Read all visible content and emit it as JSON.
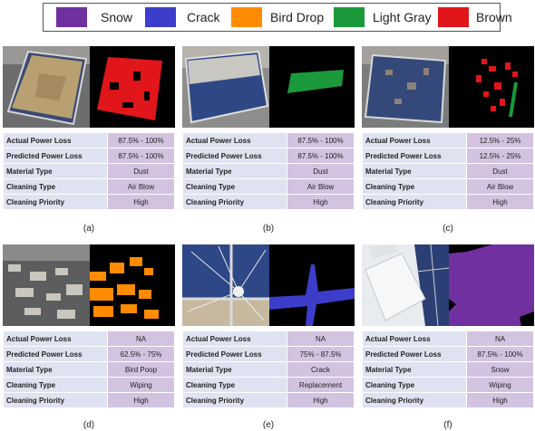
{
  "legend": [
    {
      "label": "Snow",
      "color": "#7030a0"
    },
    {
      "label": "Crack",
      "color": "#3d3dcc"
    },
    {
      "label": "Bird Drop",
      "color": "#ff8c00"
    },
    {
      "label": "Light Gray",
      "color": "#1a9a3a"
    },
    {
      "label": "Brown",
      "color": "#e0161b"
    }
  ],
  "row_labels": {
    "actual": "Actual Power Loss",
    "predicted": "Predicted Power Loss",
    "material": "Material Type",
    "cleaning": "Cleaning Type",
    "priority": "Cleaning Priority"
  },
  "panels": [
    {
      "caption": "(a)",
      "actual": "87.5% - 100%",
      "predicted": "87.5% - 100%",
      "material": "Dust",
      "cleaning": "Air Blow",
      "priority": "High"
    },
    {
      "caption": "(b)",
      "actual": "87.5% - 100%",
      "predicted": "87.5% - 100%",
      "material": "Dust",
      "cleaning": "Air Blow",
      "priority": "High"
    },
    {
      "caption": "(c)",
      "actual": "12.5% - 25%",
      "predicted": "12.5% - 25%",
      "material": "Dust",
      "cleaning": "Air Blow",
      "priority": "High"
    },
    {
      "caption": "(d)",
      "actual": "NA",
      "predicted": "62.5% - 75%",
      "material": "Bird Poop",
      "cleaning": "Wiping",
      "priority": "High"
    },
    {
      "caption": "(e)",
      "actual": "NA",
      "predicted": "75% - 87.5%",
      "material": "Crack",
      "cleaning": "Replacement",
      "priority": "High"
    },
    {
      "caption": "(f)",
      "actual": "NA",
      "predicted": "87.5% - 100%",
      "material": "Snow",
      "cleaning": "Wiping",
      "priority": "High"
    }
  ]
}
